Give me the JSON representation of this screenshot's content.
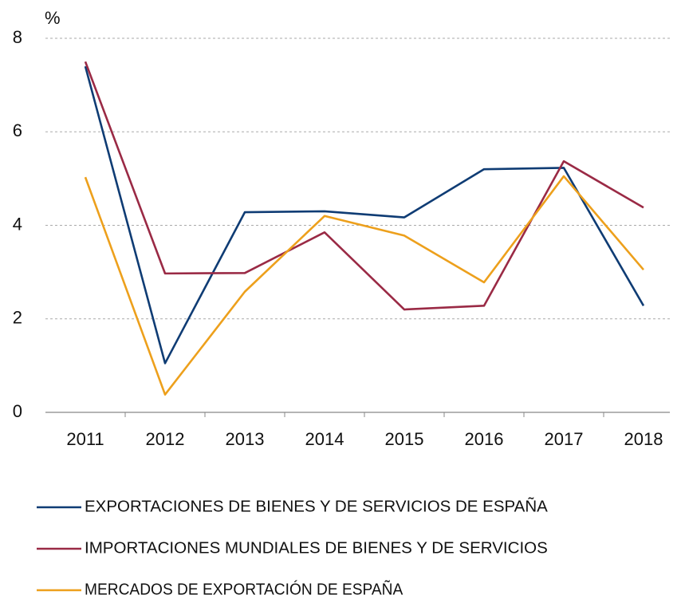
{
  "chart_data": {
    "type": "line",
    "ylabel": "%",
    "categories": [
      "2011",
      "2012",
      "2013",
      "2014",
      "2015",
      "2016",
      "2017",
      "2018"
    ],
    "series": [
      {
        "name": "EXPORTACIONES DE BIENES Y DE SERVICIOS DE ESPAÑA",
        "color": "#0f3c74",
        "values": [
          7.4,
          1.05,
          4.28,
          4.3,
          4.17,
          5.2,
          5.23,
          2.28
        ]
      },
      {
        "name": "IMPORTACIONES MUNDIALES DE BIENES Y DE SERVICIOS",
        "color": "#9a2a45",
        "values": [
          7.5,
          2.97,
          2.98,
          3.85,
          2.2,
          2.28,
          5.37,
          4.38
        ]
      },
      {
        "name": "MERCADOS DE EXPORTACIÓN DE ESPAÑA",
        "color": "#eda01c",
        "values": [
          5.03,
          0.38,
          2.58,
          4.2,
          3.78,
          2.78,
          5.05,
          3.05
        ]
      }
    ],
    "ylim": [
      0,
      8
    ],
    "yticks": [
      0,
      2,
      4,
      6,
      8
    ],
    "grid": true
  }
}
